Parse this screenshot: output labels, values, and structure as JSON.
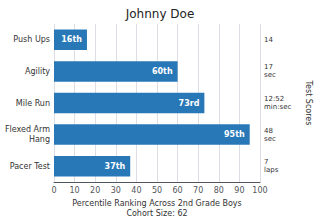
{
  "chart_data": {
    "type": "bar",
    "orientation": "horizontal",
    "title": "Johnny Doe",
    "xlabel": "Percentile Ranking Across 2nd Grade Boys\nCohort Size: 62",
    "y2label": "Test Scores",
    "categories": [
      "Push Ups",
      "Agility",
      "Mile Run",
      "Flexed Arm\nHang",
      "Pacer Test"
    ],
    "values": [
      16,
      60,
      73,
      95,
      37
    ],
    "value_labels": [
      "16th",
      "60th",
      "73rd",
      "95th",
      "37th"
    ],
    "data_labels": true,
    "y2_categories": [
      "14",
      "17\nsec",
      "12:52\nmin:sec",
      "48\nsec",
      "7\nlaps"
    ],
    "color": "#2878b8",
    "xlim": [
      0,
      100
    ],
    "xticks": [
      0,
      10,
      20,
      30,
      40,
      50,
      60,
      70,
      80,
      90,
      100
    ],
    "grid": true
  }
}
